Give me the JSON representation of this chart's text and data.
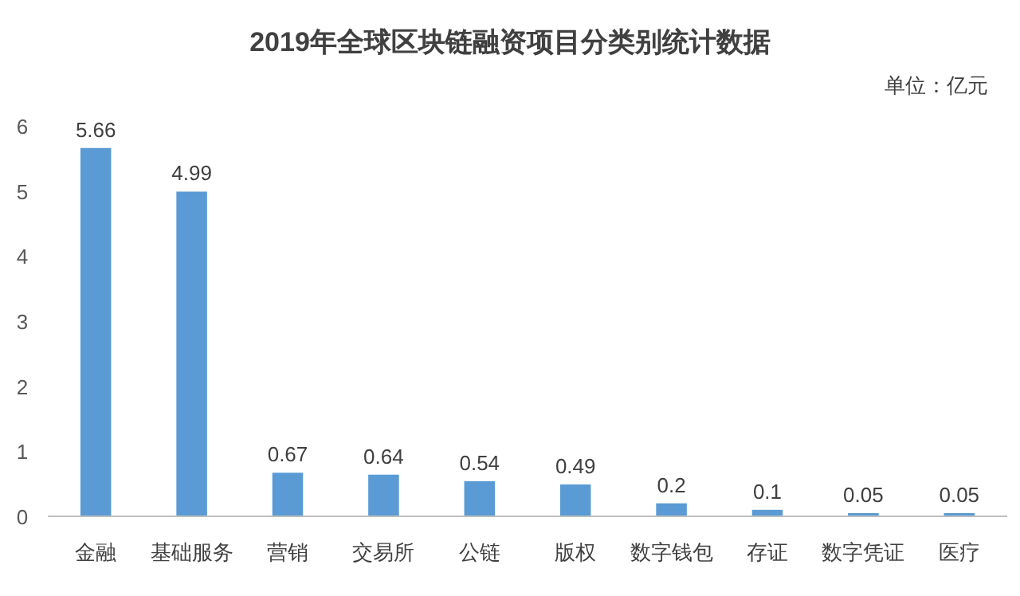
{
  "chart_data": {
    "type": "bar",
    "title": "2019年全球区块链融资项目分类别统计数据",
    "annotations": [
      "单位：亿元"
    ],
    "categories": [
      "金融",
      "基础服务",
      "营销",
      "交易所",
      "公链",
      "版权",
      "数字钱包",
      "存证",
      "数字凭证",
      "医疗"
    ],
    "values": [
      5.66,
      4.99,
      0.67,
      0.64,
      0.54,
      0.49,
      0.2,
      0.1,
      0.05,
      0.05
    ],
    "color": "#5b9bd5",
    "ylim": [
      0,
      6
    ],
    "yticks": [
      0,
      1,
      2,
      3,
      4,
      5,
      6
    ],
    "data_labels": true
  }
}
